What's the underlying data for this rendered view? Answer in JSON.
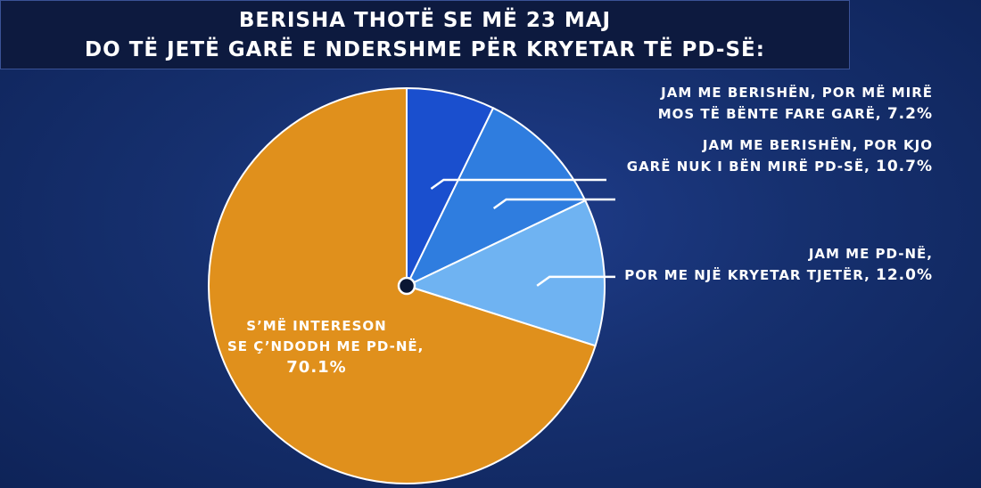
{
  "title": {
    "line1": "BERISHA THOTË SE MË 23 MAJ",
    "line2": "DO TË JETË GARË E NDERSHME PËR KRYETAR TË PD-SË:"
  },
  "colors": {
    "slice0": "#1a4fce",
    "slice1": "#2f7ddf",
    "slice2": "#6fb3f2",
    "slice3": "#e0901c"
  },
  "chart_data": {
    "type": "pie",
    "slices": [
      {
        "label_line1": "JAM ME BERISHËN, POR MË MIRË",
        "label_line2": "MOS TË BËNTE FARE GARË,",
        "value": 7.2,
        "value_label": "7.2%"
      },
      {
        "label_line1": "JAM ME BERISHËN, POR KJO",
        "label_line2": "GARË NUK I BËN MIRË PD-SË,",
        "value": 10.7,
        "value_label": "10.7%"
      },
      {
        "label_line1": "JAM ME PD-NË,",
        "label_line2": "POR ME NJË KRYETAR TJETËR,",
        "value": 12.0,
        "value_label": "12.0%"
      },
      {
        "label_line1": "S’MË INTERESON",
        "label_line2": "SE Ç’NDODH ME PD-NË,",
        "value": 70.1,
        "value_label": "70.1%"
      }
    ]
  }
}
